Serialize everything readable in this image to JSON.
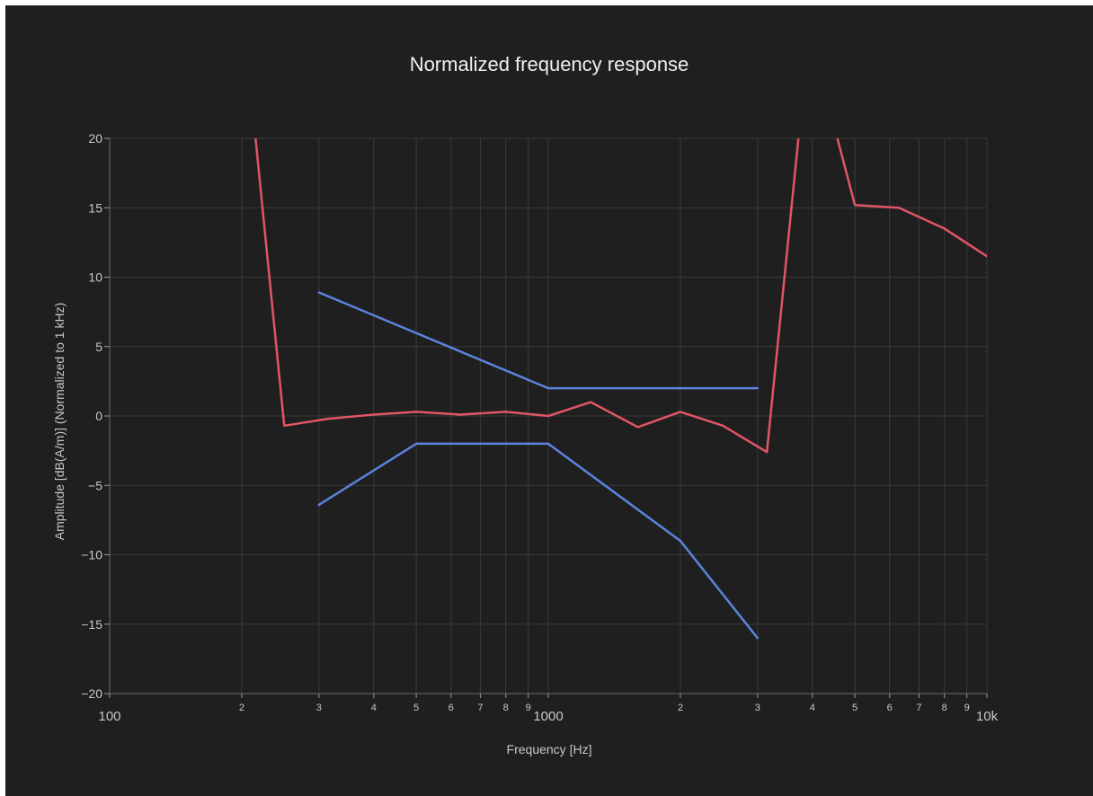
{
  "chart_data": {
    "type": "line",
    "title": "Normalized frequency response",
    "xlabel": "Frequency [Hz]",
    "ylabel": "Amplitude [dB(A/m)] (Normalized to 1 kHz)",
    "x_scale": "log",
    "xlim": [
      100,
      10000
    ],
    "ylim": [
      -20,
      20
    ],
    "grid": true,
    "y_ticks": [
      20,
      15,
      10,
      5,
      0,
      -5,
      -10,
      -15,
      -20
    ],
    "y_tick_labels": [
      "20",
      "15",
      "10",
      "5",
      "0",
      "−5",
      "−10",
      "−15",
      "−20"
    ],
    "x_major_ticks": [
      {
        "value": 100,
        "label": "100"
      },
      {
        "value": 1000,
        "label": "1000"
      },
      {
        "value": 10000,
        "label": "10k"
      }
    ],
    "x_minor_ticks": [
      {
        "value": 200,
        "label": "2"
      },
      {
        "value": 300,
        "label": "3"
      },
      {
        "value": 400,
        "label": "4"
      },
      {
        "value": 500,
        "label": "5"
      },
      {
        "value": 600,
        "label": "6"
      },
      {
        "value": 700,
        "label": "7"
      },
      {
        "value": 800,
        "label": "8"
      },
      {
        "value": 900,
        "label": "9"
      },
      {
        "value": 2000,
        "label": "2"
      },
      {
        "value": 3000,
        "label": "3"
      },
      {
        "value": 4000,
        "label": "4"
      },
      {
        "value": 5000,
        "label": "5"
      },
      {
        "value": 6000,
        "label": "6"
      },
      {
        "value": 7000,
        "label": "7"
      },
      {
        "value": 8000,
        "label": "8"
      },
      {
        "value": 9000,
        "label": "9"
      }
    ],
    "series": [
      {
        "color": "#e05567",
        "x": [
          200,
          250,
          315,
          400,
          500,
          630,
          800,
          1000,
          1250,
          1600,
          2000,
          2500,
          3150,
          4000,
          4500,
          5000,
          6300,
          8000,
          10000
        ],
        "y": [
          30,
          -0.7,
          -0.2,
          0.1,
          0.3,
          0.1,
          0.3,
          0.0,
          1.0,
          -0.8,
          0.3,
          -0.7,
          -2.6,
          30,
          20.7,
          15.2,
          15.0,
          13.5,
          11.5
        ]
      },
      {
        "color": "#5b84dd",
        "x": [
          300,
          1000,
          3000
        ],
        "y": [
          8.9,
          2.0,
          2.0
        ]
      },
      {
        "color": "#5b84dd",
        "x": [
          300,
          500,
          1000,
          2000,
          3000
        ],
        "y": [
          -6.4,
          -2.0,
          -2.0,
          -9.0,
          -16.0
        ]
      }
    ]
  }
}
